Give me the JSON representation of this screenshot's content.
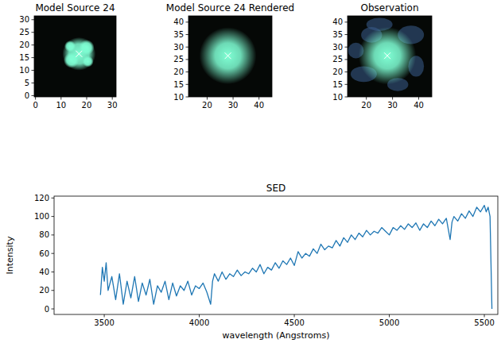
{
  "chart_data": [
    {
      "type": "image",
      "title": "Model Source 24",
      "color": "#7fffd4",
      "marker": "x",
      "xlim": [
        -0.5,
        31.5
      ],
      "ylim": [
        -0.5,
        31.5
      ],
      "xticks": [
        0,
        10,
        20,
        30
      ],
      "yticks": [
        0,
        5,
        10,
        15,
        20,
        25,
        30
      ],
      "center": {
        "x": 17,
        "y": 16.5
      }
    },
    {
      "type": "image",
      "title": "Model Source 24 Rendered",
      "color": "#7fffd4",
      "marker": "x",
      "xlim": [
        12.8,
        45
      ],
      "ylim": [
        10,
        42.5
      ],
      "xticks": [
        20,
        30,
        40
      ],
      "yticks": [
        10,
        15,
        20,
        25,
        30,
        35,
        40
      ],
      "center": {
        "x": 28,
        "y": 26.5
      }
    },
    {
      "type": "image",
      "title": "Observation",
      "color": "#7fffd4",
      "marker": "x",
      "xlim": [
        12.8,
        45
      ],
      "ylim": [
        10,
        42.5
      ],
      "xticks": [
        20,
        30,
        40
      ],
      "yticks": [
        10,
        15,
        20,
        25,
        30,
        35,
        40
      ],
      "center": {
        "x": 28,
        "y": 26.5
      }
    },
    {
      "type": "line",
      "title": "SED",
      "x_label": "wavelength (Angstroms)",
      "y_label": "Intensity",
      "xlim": [
        3236,
        5571
      ],
      "ylim": [
        -6,
        122
      ],
      "xticks": [
        3500,
        4000,
        4500,
        5000,
        5500
      ],
      "yticks": [
        0,
        20,
        40,
        60,
        80,
        100,
        120
      ],
      "x": [
        3480,
        3490,
        3500,
        3510,
        3520,
        3540,
        3560,
        3580,
        3600,
        3620,
        3640,
        3660,
        3680,
        3700,
        3720,
        3740,
        3760,
        3780,
        3800,
        3820,
        3840,
        3860,
        3880,
        3900,
        3920,
        3940,
        3960,
        3980,
        4000,
        4020,
        4040,
        4060,
        4070,
        4080,
        4100,
        4120,
        4140,
        4160,
        4180,
        4200,
        4220,
        4240,
        4260,
        4280,
        4300,
        4320,
        4340,
        4360,
        4380,
        4400,
        4420,
        4440,
        4460,
        4480,
        4500,
        4520,
        4540,
        4560,
        4580,
        4600,
        4620,
        4640,
        4660,
        4680,
        4700,
        4720,
        4740,
        4760,
        4780,
        4800,
        4820,
        4840,
        4860,
        4880,
        4900,
        4920,
        4940,
        4960,
        4980,
        5000,
        5020,
        5040,
        5060,
        5080,
        5100,
        5120,
        5140,
        5160,
        5180,
        5200,
        5220,
        5240,
        5260,
        5280,
        5300,
        5320,
        5330,
        5340,
        5360,
        5380,
        5400,
        5420,
        5440,
        5460,
        5480,
        5500,
        5510,
        5520,
        5530,
        5540
      ],
      "series": [
        {
          "color": "#1f77b4",
          "values": [
            15,
            45,
            30,
            50,
            20,
            35,
            10,
            38,
            5,
            30,
            12,
            35,
            8,
            28,
            15,
            32,
            5,
            25,
            18,
            30,
            10,
            28,
            14,
            25,
            20,
            30,
            15,
            25,
            22,
            28,
            18,
            5,
            30,
            38,
            30,
            40,
            32,
            38,
            35,
            42,
            36,
            40,
            38,
            44,
            40,
            48,
            38,
            45,
            42,
            50,
            44,
            52,
            48,
            55,
            47,
            62,
            55,
            60,
            57,
            65,
            60,
            70,
            64,
            68,
            66,
            74,
            68,
            77,
            72,
            80,
            75,
            82,
            78,
            85,
            80,
            84,
            82,
            88,
            84,
            80,
            88,
            85,
            90,
            86,
            92,
            88,
            93,
            85,
            92,
            88,
            95,
            90,
            97,
            92,
            98,
            75,
            94,
            100,
            95,
            103,
            98,
            106,
            100,
            110,
            105,
            112,
            105,
            110,
            100,
            0
          ]
        }
      ]
    }
  ]
}
